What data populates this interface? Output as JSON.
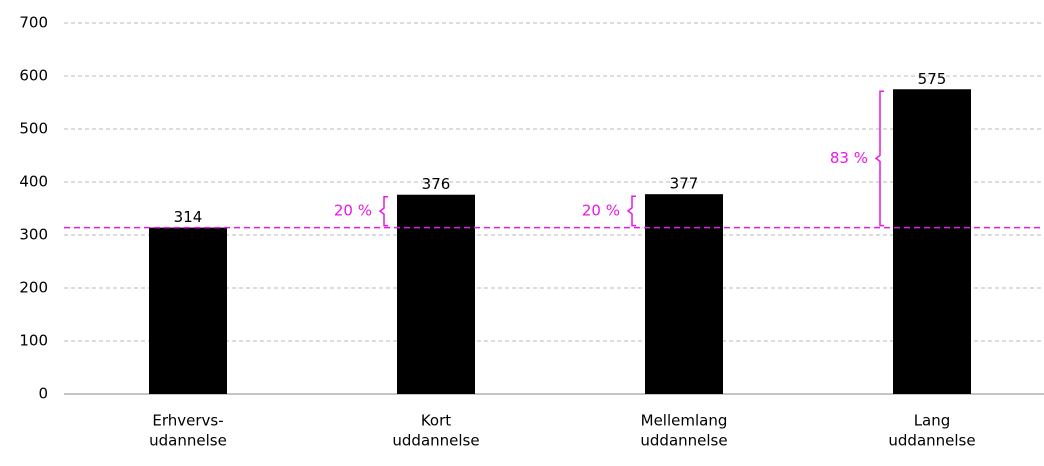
{
  "chart_data": {
    "type": "bar",
    "categories": [
      [
        "Erhvervs-",
        "udannelse"
      ],
      [
        "Kort",
        "uddannelse"
      ],
      [
        "Mellemlang",
        "uddannelse"
      ],
      [
        "Lang",
        "uddannelse"
      ]
    ],
    "values": [
      314,
      376,
      377,
      575
    ],
    "color": "#000000",
    "ylim": [
      0,
      700
    ],
    "yticks": [
      0,
      100,
      200,
      300,
      400,
      500,
      600,
      700
    ],
    "grid": true,
    "reference_line": 314,
    "reference_color": "#e619e6",
    "annotations": [
      null,
      "20 %",
      "20 %",
      "83 %"
    ]
  }
}
